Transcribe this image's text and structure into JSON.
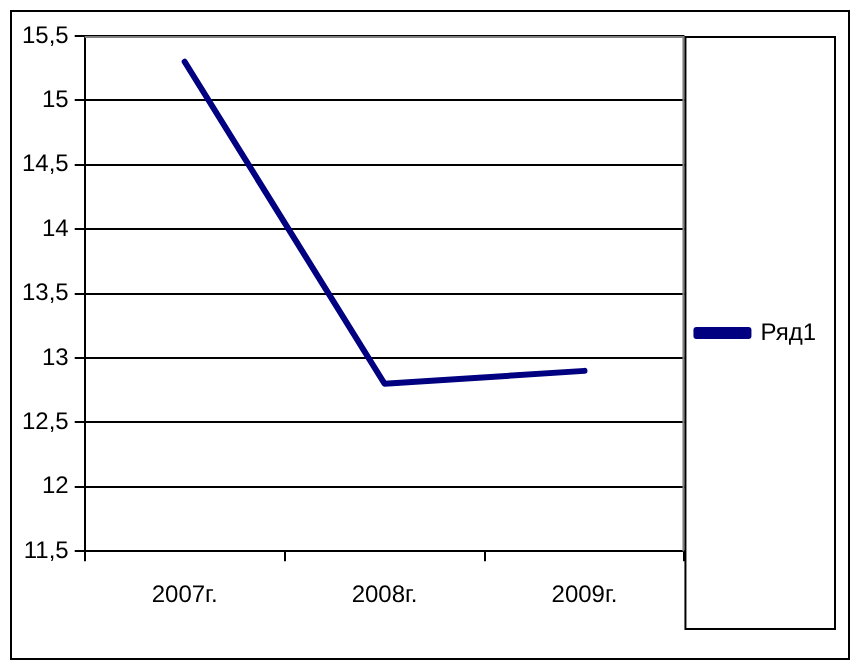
{
  "chart_data": {
    "type": "line",
    "categories": [
      "2007г.",
      "2008г.",
      "2009г."
    ],
    "series": [
      {
        "name": "Ряд1",
        "color": "#000080",
        "values": [
          15.3,
          12.8,
          12.9
        ]
      }
    ],
    "ylim": [
      11.5,
      15.5
    ],
    "yticks": [
      {
        "value": 11.5,
        "label": "11,5"
      },
      12,
      {
        "value": 12.5,
        "label": "12,5"
      },
      13,
      {
        "value": 13.5,
        "label": "13,5"
      },
      14,
      {
        "value": 14.5,
        "label": "14,5"
      },
      15,
      {
        "value": 15.5,
        "label": "15,5"
      }
    ],
    "grid": "y",
    "legend": "right",
    "marker": "none",
    "line_style": "solid"
  }
}
